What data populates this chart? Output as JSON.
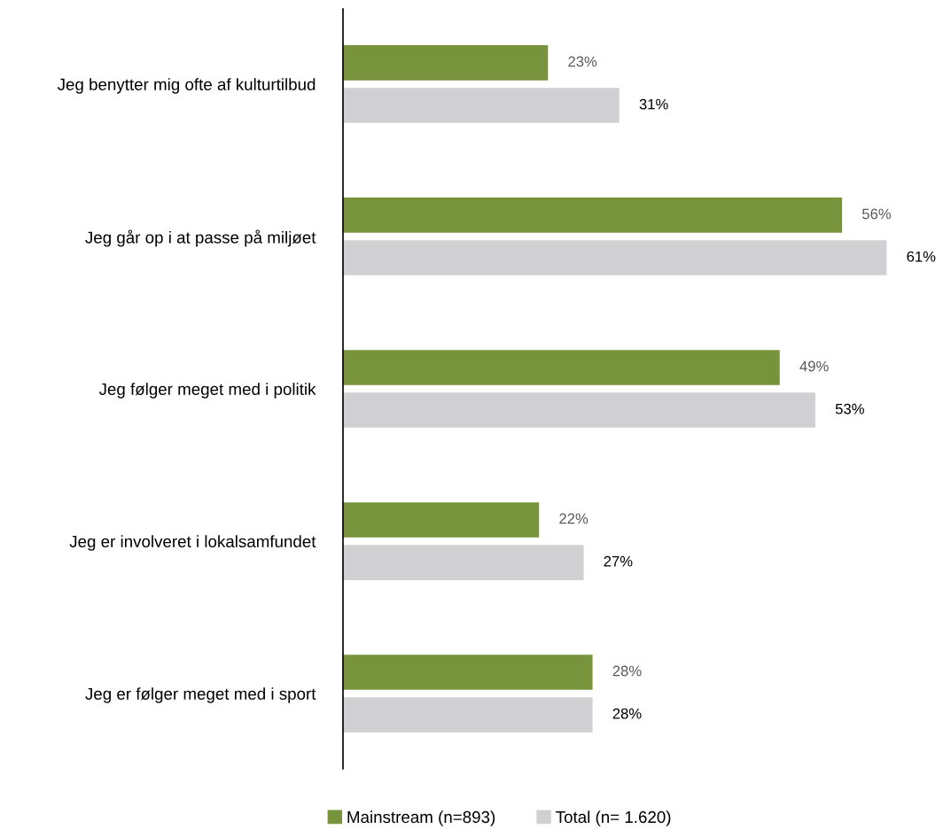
{
  "chart_data": {
    "type": "bar",
    "orientation": "horizontal",
    "categories": [
      "Jeg benytter mig ofte af kulturtilbud",
      "Jeg går op i at passe på miljøet",
      "Jeg følger meget med i politik",
      "Jeg er involveret i lokalsamfundet",
      "Jeg er følger meget med i sport"
    ],
    "series": [
      {
        "name": "Mainstream (n=893)",
        "color": "#77933c",
        "values": [
          23,
          56,
          49,
          22,
          28
        ],
        "value_labels": [
          "23%",
          "56%",
          "49%",
          "22%",
          "28%"
        ]
      },
      {
        "name": "Total (n= 1.620)",
        "color": "#d0d0d2",
        "values": [
          31,
          61,
          53,
          27,
          28
        ],
        "value_labels": [
          "31%",
          "61%",
          "53%",
          "27%",
          "28%"
        ]
      }
    ],
    "legend": "bottom",
    "grid": false
  }
}
